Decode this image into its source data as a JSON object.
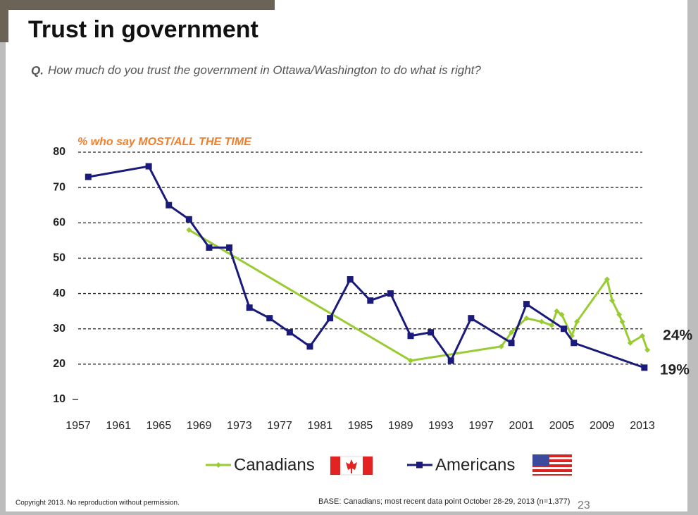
{
  "header": {
    "title": "Trust in government",
    "question_label": "Q.",
    "question": "How much do you trust the government in Ottawa/Washington to do what is right?"
  },
  "chart_data": {
    "type": "line",
    "subtitle": "% who say MOST/ALL THE TIME",
    "xlim": [
      1957,
      2013
    ],
    "xticks": [
      1957,
      1961,
      1965,
      1969,
      1973,
      1977,
      1981,
      1985,
      1989,
      1993,
      1997,
      2001,
      2005,
      2009,
      2013
    ],
    "ylim": [
      10,
      80
    ],
    "yticks": [
      10,
      20,
      30,
      40,
      50,
      60,
      70,
      80
    ],
    "grid": true,
    "legend": "bottom",
    "series": [
      {
        "name": "Canadians",
        "color": "#99cc33",
        "marker": "diamond",
        "x": [
          1968,
          1990,
          1999,
          2000,
          2001.5,
          2003,
          2004,
          2004.5,
          2005,
          2006,
          2006.5,
          2009.5,
          2010,
          2010.7,
          2011,
          2011.8,
          2013,
          2013.5
        ],
        "values": [
          58,
          21,
          25,
          29,
          33,
          32,
          31,
          35,
          34,
          28,
          32,
          44,
          38,
          34,
          32,
          26,
          28,
          24
        ],
        "value_labels": [
          null,
          null,
          null,
          null,
          null,
          null,
          null,
          null,
          null,
          null,
          null,
          null,
          null,
          null,
          null,
          null,
          null,
          "24%"
        ]
      },
      {
        "name": "Americans",
        "color": "#1a1a7a",
        "marker": "square",
        "x": [
          1958,
          1964,
          1966,
          1968,
          1970,
          1972,
          1974,
          1976,
          1978,
          1980,
          1982,
          1984,
          1986,
          1988,
          1990,
          1992,
          1994,
          1996,
          2000,
          2001.5,
          2005.2,
          2006.2,
          2013.2
        ],
        "values": [
          73,
          76,
          65,
          61,
          53,
          53,
          36,
          33,
          29,
          25,
          33,
          44,
          38,
          40,
          28,
          29,
          21,
          33,
          26,
          37,
          30,
          26,
          19
        ],
        "value_labels": [
          null,
          null,
          null,
          null,
          null,
          null,
          null,
          null,
          null,
          null,
          null,
          null,
          null,
          null,
          null,
          null,
          null,
          null,
          null,
          null,
          null,
          null,
          "19%"
        ]
      }
    ]
  },
  "footer": {
    "copyright": "Copyright 2013. No reproduction without permission.",
    "base": "BASE: Canadians; most recent data point October 28-29, 2013 (n=1,377)",
    "page": "23"
  }
}
